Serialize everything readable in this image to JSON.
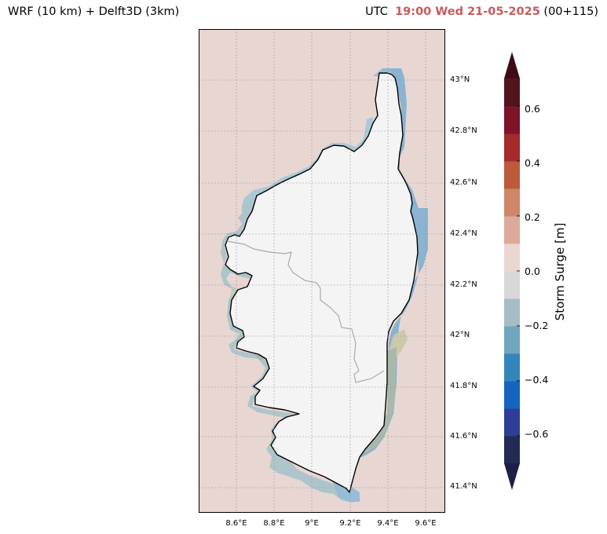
{
  "header": {
    "left_title": "WRF (10 km) + Delft3D (3km)",
    "right_prefix": "UTC",
    "right_time": "19:00 Wed 21-05-2025",
    "right_suffix": "(00+115)"
  },
  "map": {
    "region": "Corsica",
    "lat_labels": [
      "43°N",
      "42.8°N",
      "42.6°N",
      "42.4°N",
      "42.2°N",
      "42°N",
      "41.8°N",
      "41.6°N",
      "41.4°N"
    ],
    "lon_labels": [
      "8.6°E",
      "8.8°E",
      "9°E",
      "9.2°E",
      "9.4°E",
      "9.6°E"
    ],
    "lat_values": [
      43.0,
      42.8,
      42.6,
      42.4,
      42.2,
      42.0,
      41.8,
      41.6,
      41.4
    ],
    "lon_values": [
      8.6,
      8.8,
      9.0,
      9.2,
      9.4,
      9.6
    ],
    "sea_color": "#e8d6d3",
    "land_color": "#f4f4f4",
    "border_color": "#000000",
    "internal_border_color": "#aaaaaa",
    "grid": true
  },
  "colorbar": {
    "label": "Storm Surge [m]",
    "ticks": [
      "0.6",
      "0.4",
      "0.2",
      "0.0",
      "−0.2",
      "−0.4",
      "−0.6"
    ],
    "tick_values": [
      0.6,
      0.4,
      0.2,
      0.0,
      -0.2,
      -0.4,
      -0.6
    ],
    "range": [
      -0.7,
      0.7
    ],
    "step": 0.1,
    "extend": "both",
    "colors": [
      "#232b54",
      "#2e3d96",
      "#1565c0",
      "#3485bb",
      "#70a7bf",
      "#a7bdc6",
      "#d8d8d8",
      "#ead7d3",
      "#dcaa9a",
      "#d08669",
      "#bc5a3a",
      "#a52a2a",
      "#7e1328",
      "#511520"
    ],
    "under_color": "#1c2048",
    "over_color": "#3e0c14"
  }
}
